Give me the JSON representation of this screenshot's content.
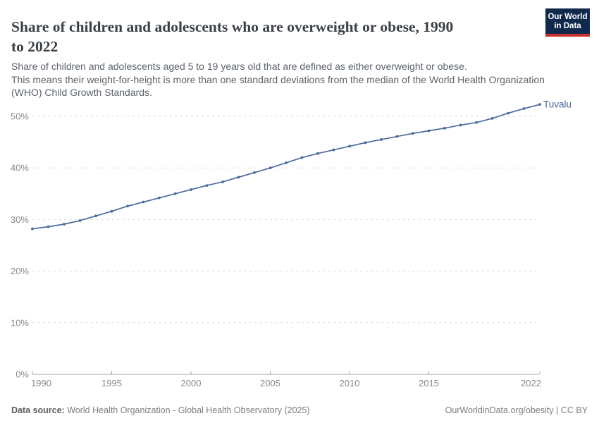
{
  "header": {
    "title": "Share of children and adolescents who are overweight or obese, 1990 to 2022",
    "title_lines": [
      "Share of children and adolescents who are overweight or obese, 1990",
      "to 2022"
    ],
    "subtitle_lines": [
      "Share of children and adolescents aged 5 to 19 years old that are defined as either overweight or obese.",
      "This means their weight-for-height is more than one standard deviations from the median of the World Health Organization",
      "(WHO) Child Growth Standards."
    ],
    "logo": {
      "line1": "Our World",
      "line2": "in Data"
    }
  },
  "footer": {
    "datasource_label": "Data source:",
    "datasource_text": "World Health Organization - Global Health Observatory (2025)",
    "attribution": "OurWorldinData.org/obesity | CC BY"
  },
  "colors": {
    "line": "#4c6a9c",
    "grid": "#dcdcdc",
    "axis": "#a3a3a3",
    "axis_text": "#8a8a8a",
    "title_text": "#3b4046",
    "logo_bg": "#12294e",
    "logo_red": "#c9352e"
  },
  "chart_data": {
    "type": "line",
    "title": "Share of children and adolescents who are overweight or obese, 1990 to 2022",
    "xlabel": "",
    "ylabel": "",
    "unit": "%",
    "xlim": [
      1990,
      2022
    ],
    "ylim": [
      0,
      55
    ],
    "grid": "horizontal-dashed",
    "legend": "end-of-line-label",
    "end_label": "Tuvalu",
    "yticks": [
      {
        "value": 0,
        "label": "0%"
      },
      {
        "value": 10,
        "label": "10%"
      },
      {
        "value": 20,
        "label": "20%"
      },
      {
        "value": 30,
        "label": "30%"
      },
      {
        "value": 40,
        "label": "40%"
      },
      {
        "value": 50,
        "label": "50%"
      }
    ],
    "xticks": [
      {
        "year": 1990,
        "label": "1990",
        "anchor": "start"
      },
      {
        "year": 1995,
        "label": "1995",
        "anchor": "middle"
      },
      {
        "year": 2000,
        "label": "2000",
        "anchor": "middle"
      },
      {
        "year": 2005,
        "label": "2005",
        "anchor": "middle"
      },
      {
        "year": 2010,
        "label": "2010",
        "anchor": "middle"
      },
      {
        "year": 2015,
        "label": "2015",
        "anchor": "middle"
      },
      {
        "year": 2022,
        "label": "2022",
        "anchor": "end"
      }
    ],
    "series": [
      {
        "name": "Tuvalu",
        "x": [
          1990,
          1991,
          1992,
          1993,
          1994,
          1995,
          1996,
          1997,
          1998,
          1999,
          2000,
          2001,
          2002,
          2003,
          2004,
          2005,
          2006,
          2007,
          2008,
          2009,
          2010,
          2011,
          2012,
          2013,
          2014,
          2015,
          2016,
          2017,
          2018,
          2019,
          2020,
          2021,
          2022
        ],
        "values": [
          28.2,
          28.6,
          29.1,
          29.8,
          30.7,
          31.6,
          32.6,
          33.4,
          34.2,
          35.0,
          35.8,
          36.6,
          37.3,
          38.2,
          39.1,
          40.0,
          41.0,
          42.0,
          42.8,
          43.5,
          44.2,
          44.9,
          45.5,
          46.1,
          46.7,
          47.2,
          47.7,
          48.3,
          48.8,
          49.6,
          50.6,
          51.5,
          52.3
        ]
      }
    ]
  }
}
